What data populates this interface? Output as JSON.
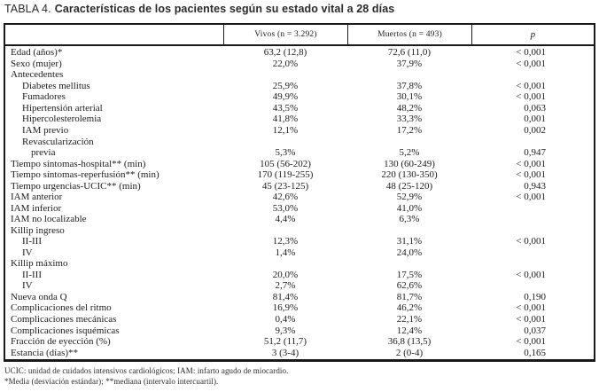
{
  "title": {
    "prefix": "TABLA 4.",
    "text": "Características de los pacientes según su estado vital a 28 días"
  },
  "table": {
    "columns": [
      "",
      "Vivos (n = 3.292)",
      "Muertos (n = 493)",
      "p"
    ],
    "rows": [
      {
        "label": "Edad (años)*",
        "indent": 0,
        "vivos": "63,2 (12,8)",
        "muertos": "72,6 (11,0)",
        "p": "< 0,001"
      },
      {
        "label": "Sexo (mujer)",
        "indent": 0,
        "vivos": "22,0%",
        "muertos": "37,9%",
        "p": "< 0,001"
      },
      {
        "label": "Antecedentes",
        "indent": 0,
        "vivos": "",
        "muertos": "",
        "p": ""
      },
      {
        "label": "Diabetes mellitus",
        "indent": 1,
        "vivos": "25,9%",
        "muertos": "37,8%",
        "p": "< 0,001"
      },
      {
        "label": "Fumadores",
        "indent": 1,
        "vivos": "49,9%",
        "muertos": "30,1%",
        "p": "< 0,001"
      },
      {
        "label": "Hipertensión arterial",
        "indent": 1,
        "vivos": "43,5%",
        "muertos": "48,2%",
        "p": "0,063"
      },
      {
        "label": "Hipercolesterolemia",
        "indent": 1,
        "vivos": "41,8%",
        "muertos": "33,3%",
        "p": "0,001"
      },
      {
        "label": "IAM previo",
        "indent": 1,
        "vivos": "12,1%",
        "muertos": "17,2%",
        "p": "0,002"
      },
      {
        "label": "Revascularización",
        "indent": 1,
        "vivos": "",
        "muertos": "",
        "p": ""
      },
      {
        "label": "previa",
        "indent": 2,
        "vivos": "5,3%",
        "muertos": "5,2%",
        "p": "0,947"
      },
      {
        "label": "Tiempo síntomas-hospital** (min)",
        "indent": 0,
        "vivos": "105 (56-202)",
        "muertos": "130 (60-249)",
        "p": "< 0,001"
      },
      {
        "label": "Tiempo síntomas-reperfusión** (min)",
        "indent": 0,
        "vivos": "170 (119-255)",
        "muertos": "220 (130-350)",
        "p": "< 0,001"
      },
      {
        "label": "Tiempo urgencias-UCIC** (min)",
        "indent": 0,
        "vivos": "45 (23-125)",
        "muertos": "48 (25-120)",
        "p": "0,943"
      },
      {
        "label": "IAM anterior",
        "indent": 0,
        "vivos": "42,6%",
        "muertos": "52,9%",
        "p": "< 0,001"
      },
      {
        "label": "IAM inferior",
        "indent": 0,
        "vivos": "53,0%",
        "muertos": "41,0%",
        "p": ""
      },
      {
        "label": "IAM no localizable",
        "indent": 0,
        "vivos": "4,4%",
        "muertos": "6,3%",
        "p": ""
      },
      {
        "label": "Killip ingreso",
        "indent": 0,
        "vivos": "",
        "muertos": "",
        "p": ""
      },
      {
        "label": "II-III",
        "indent": 1,
        "vivos": "12,3%",
        "muertos": "31,1%",
        "p": "< 0,001"
      },
      {
        "label": "IV",
        "indent": 1,
        "vivos": "1,4%",
        "muertos": "24,0%",
        "p": ""
      },
      {
        "label": "Killip máximo",
        "indent": 0,
        "vivos": "",
        "muertos": "",
        "p": ""
      },
      {
        "label": "II-III",
        "indent": 1,
        "vivos": "20,0%",
        "muertos": "17,5%",
        "p": "< 0,001"
      },
      {
        "label": "IV",
        "indent": 1,
        "vivos": "2,7%",
        "muertos": "62,6%",
        "p": ""
      },
      {
        "label": "Nueva onda Q",
        "indent": 0,
        "vivos": "81,4%",
        "muertos": "81,7%",
        "p": "0,190"
      },
      {
        "label": "Complicaciones del ritmo",
        "indent": 0,
        "vivos": "16,9%",
        "muertos": "46,2%",
        "p": "< 0,001"
      },
      {
        "label": "Complicaciones mecánicas",
        "indent": 0,
        "vivos": "0,4%",
        "muertos": "22,1%",
        "p": "< 0,001"
      },
      {
        "label": "Complicaciones isquémicas",
        "indent": 0,
        "vivos": "9,3%",
        "muertos": "12,4%",
        "p": "0,037"
      },
      {
        "label": "Fracción de eyección (%)",
        "indent": 0,
        "vivos": "51,2 (11,7)",
        "muertos": "36,8 (13,5)",
        "p": "< 0,001"
      },
      {
        "label": "Estancia (días)**",
        "indent": 0,
        "vivos": "3 (3-4)",
        "muertos": "2 (0-4)",
        "p": "0,165"
      }
    ]
  },
  "footnotes": [
    "UCIC: unidad de cuidados intensivos cardiológicos; IAM: infarto agudo de miocardio.",
    "*Media (desviación estándar); **mediana (intervalo intercuartil)."
  ]
}
